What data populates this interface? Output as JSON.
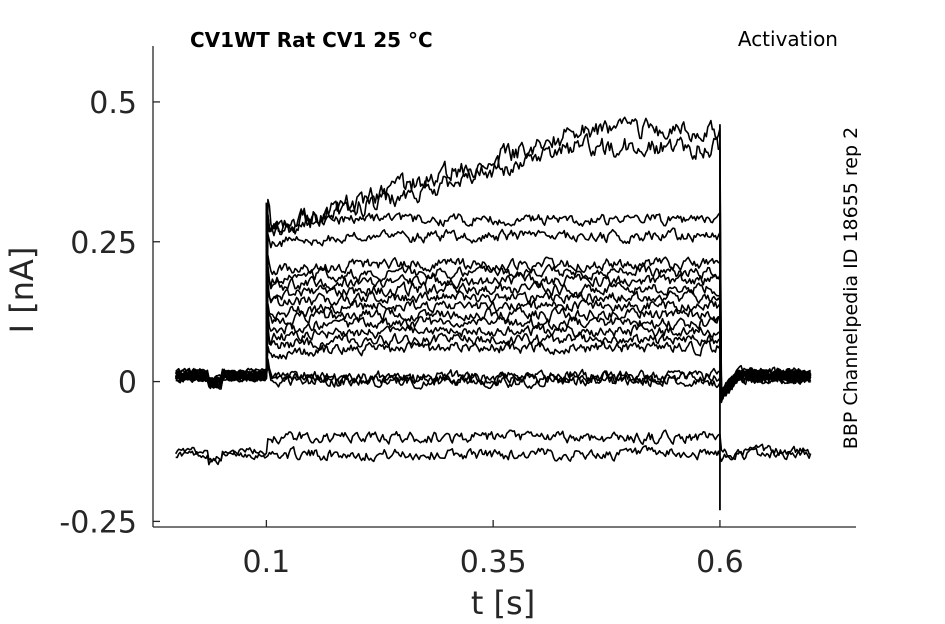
{
  "chart_data": {
    "type": "line",
    "title": "CV1WT  Rat  CV1  25 °C",
    "annotation": "Activation",
    "side_label": "BBP Channelpedia ID 18655 rep 2",
    "xlabel": "t [s]",
    "ylabel": "I [nA]",
    "xlim": [
      -0.025,
      0.75
    ],
    "ylim": [
      -0.26,
      0.6
    ],
    "x_ticks": [
      0.1,
      0.35,
      0.6
    ],
    "x_tick_labels": [
      "0.1",
      "0.35",
      "0.6"
    ],
    "y_ticks": [
      -0.25,
      0,
      0.25,
      0.5
    ],
    "y_tick_labels": [
      "-0.25",
      "0",
      "0.25",
      "0.5"
    ],
    "grid": false,
    "line_color": "#000000",
    "pulse_window_s": [
      0.1,
      0.6
    ],
    "trace_time_range_s": [
      0.0,
      0.7
    ],
    "series_steady_state_nA": [
      -0.13,
      -0.1,
      0.0,
      0.005,
      0.01,
      0.06,
      0.075,
      0.09,
      0.105,
      0.12,
      0.135,
      0.15,
      0.165,
      0.18,
      0.195,
      0.21,
      0.26,
      0.29,
      0.42,
      0.45
    ]
  }
}
